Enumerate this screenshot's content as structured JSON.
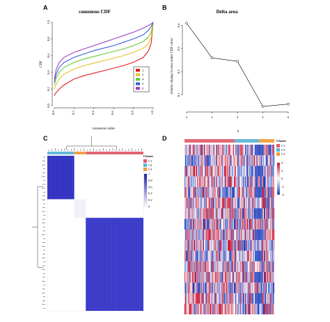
{
  "panels": {
    "A": {
      "letter": "A",
      "chart_data": {
        "type": "line",
        "title": "consensus CDF",
        "xlabel": "consensus index",
        "ylabel": "CDF",
        "xlim": [
          0,
          1
        ],
        "ylim": [
          0,
          1
        ],
        "xticks": [
          "0.0",
          "0.2",
          "0.4",
          "0.6",
          "0.8",
          "1.0"
        ],
        "yticks": [
          "0.0",
          "0.2",
          "0.4",
          "0.6",
          "0.8",
          "1.0"
        ],
        "legend_placement": "right",
        "x": [
          0.0,
          0.02,
          0.05,
          0.1,
          0.2,
          0.3,
          0.4,
          0.5,
          0.6,
          0.7,
          0.8,
          0.9,
          0.95,
          0.98,
          1.0
        ],
        "series": [
          {
            "name": "2",
            "color": "#e41a1c",
            "values": [
              0.12,
              0.16,
              0.2,
              0.25,
              0.32,
              0.36,
              0.39,
              0.42,
              0.45,
              0.48,
              0.52,
              0.58,
              0.65,
              0.75,
              1.0
            ]
          },
          {
            "name": "3",
            "color": "#e6c229",
            "values": [
              0.2,
              0.26,
              0.32,
              0.38,
              0.44,
              0.48,
              0.51,
              0.54,
              0.57,
              0.6,
              0.64,
              0.69,
              0.74,
              0.82,
              1.0
            ]
          },
          {
            "name": "4",
            "color": "#66cc33",
            "values": [
              0.25,
              0.33,
              0.4,
              0.46,
              0.52,
              0.56,
              0.59,
              0.62,
              0.65,
              0.68,
              0.72,
              0.77,
              0.82,
              0.88,
              1.0
            ]
          },
          {
            "name": "5",
            "color": "#3b5bdb",
            "values": [
              0.28,
              0.38,
              0.46,
              0.52,
              0.58,
              0.62,
              0.66,
              0.69,
              0.72,
              0.76,
              0.8,
              0.85,
              0.9,
              0.95,
              1.0
            ]
          },
          {
            "name": "6",
            "color": "#a03ec4",
            "values": [
              0.32,
              0.44,
              0.52,
              0.58,
              0.64,
              0.68,
              0.72,
              0.76,
              0.8,
              0.84,
              0.88,
              0.93,
              0.96,
              0.98,
              1.0
            ]
          }
        ]
      }
    },
    "B": {
      "letter": "B",
      "chart_data": {
        "type": "line",
        "title": "Delta area",
        "xlabel": "k",
        "ylabel": "relative change in area under CDF curve",
        "x": [
          2,
          3,
          4,
          5,
          6
        ],
        "values": [
          0.41,
          0.26,
          0.245,
          0.05,
          0.06
        ],
        "xlim": [
          2,
          6
        ],
        "ylim": [
          0.05,
          0.42
        ],
        "xticks": [
          "2",
          "3",
          "4",
          "5",
          "6"
        ],
        "yticks": [
          "0.1",
          "0.2",
          "0.3",
          "0.4"
        ],
        "color": "#000000"
      }
    },
    "C": {
      "letter": "C",
      "chart_data": {
        "type": "heatmap",
        "legend_title": "Cluster",
        "clusters": [
          {
            "name": "C1",
            "color": "#e05a6a",
            "fraction": 0.6
          },
          {
            "name": "C2",
            "color": "#5ab3d9",
            "fraction": 0.28
          },
          {
            "name": "C3",
            "color": "#f39a3a",
            "fraction": 0.12
          }
        ],
        "order": [
          "C2",
          "C3",
          "C1"
        ],
        "scale_ticks": [
          "1",
          "0.8",
          "0.6",
          "0.4",
          "0.2",
          "0"
        ],
        "scale_colors": [
          "#1a1aa8",
          "#ffffff"
        ],
        "block_shades": [
          "#2d2dc0",
          "#f0f0fa",
          "#3535c8"
        ]
      }
    },
    "D": {
      "letter": "D",
      "chart_data": {
        "type": "heatmap",
        "legend_title": "Cluster",
        "clusters": [
          {
            "name": "C1",
            "color": "#e05a6a",
            "fraction": 0.56
          },
          {
            "name": "C2",
            "color": "#5ab3d9",
            "fraction": 0.27
          },
          {
            "name": "C3",
            "color": "#f39a3a",
            "fraction": 0.17
          }
        ],
        "scale_ticks": [
          "4",
          "2",
          "0",
          "-2",
          "-4"
        ],
        "scale_colors": [
          "#c8102e",
          "#ffffff",
          "#1f3fbf"
        ],
        "n_rows": 16,
        "n_cols": 120
      }
    }
  }
}
